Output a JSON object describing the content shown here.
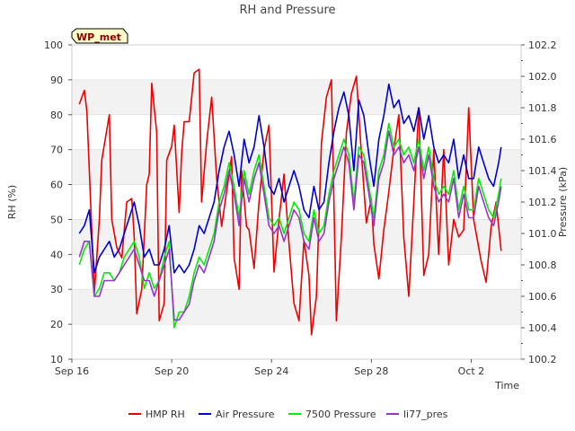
{
  "chart_data": {
    "type": "line",
    "title": "RH and Pressure",
    "xlabel": "Time",
    "ylabel": "RH (%)",
    "y2label": "Pressure (kPa)",
    "badge": "WP_met",
    "x_ticks": [
      {
        "label": "Sep 16",
        "day": 0
      },
      {
        "label": "Sep 20",
        "day": 4
      },
      {
        "label": "Sep 24",
        "day": 8
      },
      {
        "label": "Sep 28",
        "day": 12
      },
      {
        "label": "Oct 2",
        "day": 16
      }
    ],
    "xlim_days": [
      0,
      18
    ],
    "ylim": [
      10,
      100
    ],
    "y_ticks": [
      10,
      20,
      30,
      40,
      50,
      60,
      70,
      80,
      90,
      100
    ],
    "y2lim": [
      100.2,
      102.2
    ],
    "y2_ticks": [
      "100.2",
      "100.4",
      "100.6",
      "100.8",
      "101.0",
      "101.2",
      "101.4",
      "101.6",
      "101.8",
      "102.0",
      "102.2"
    ],
    "grid": "horizontal-bands",
    "legend_position": "bottom",
    "series": [
      {
        "name": "HMP RH",
        "color": "#ee0000",
        "axis": "left",
        "x": [
          0.3,
          0.5,
          0.6,
          0.9,
          1.1,
          1.2,
          1.5,
          1.6,
          1.8,
          2.0,
          2.2,
          2.4,
          2.5,
          2.6,
          2.8,
          3.0,
          3.1,
          3.2,
          3.4,
          3.5,
          3.7,
          3.8,
          4.0,
          4.1,
          4.3,
          4.4,
          4.5,
          4.7,
          4.9,
          5.1,
          5.2,
          5.4,
          5.6,
          5.8,
          6.0,
          6.2,
          6.4,
          6.5,
          6.7,
          6.8,
          7.0,
          7.1,
          7.3,
          7.5,
          7.7,
          7.9,
          8.1,
          8.3,
          8.5,
          8.7,
          8.9,
          9.1,
          9.3,
          9.5,
          9.6,
          9.8,
          10.0,
          10.2,
          10.4,
          10.6,
          10.8,
          11.0,
          11.2,
          11.4,
          11.6,
          11.8,
          12.0,
          12.1,
          12.3,
          12.5,
          12.7,
          12.9,
          13.1,
          13.3,
          13.5,
          13.7,
          13.9,
          14.1,
          14.3,
          14.5,
          14.7,
          14.9,
          15.1,
          15.3,
          15.5,
          15.7,
          15.9,
          16.1,
          16.3,
          16.4,
          16.6,
          16.8,
          17.0,
          17.2
        ],
        "values": [
          83,
          87,
          81,
          29,
          50,
          67,
          80,
          50,
          42,
          39,
          55,
          56,
          45,
          23,
          30,
          60,
          63,
          89,
          75,
          21,
          26,
          67,
          71,
          77,
          52,
          69,
          78,
          78,
          92,
          93,
          55,
          72,
          85,
          62,
          48,
          58,
          68,
          39,
          30,
          64,
          48,
          47,
          36,
          55,
          70,
          77,
          35,
          50,
          63,
          43,
          26,
          21,
          44,
          34,
          17,
          28,
          72,
          85,
          90,
          21,
          45,
          75,
          86,
          91,
          69,
          49,
          56,
          43,
          33,
          47,
          58,
          70,
          80,
          45,
          28,
          55,
          82,
          34,
          40,
          70,
          40,
          70,
          37,
          50,
          45,
          47,
          82,
          50,
          42,
          38,
          32,
          48,
          55,
          41
        ]
      },
      {
        "name": "Air Pressure",
        "color": "#0000cc",
        "axis": "right",
        "x": [
          0.3,
          0.5,
          0.7,
          0.9,
          1.1,
          1.3,
          1.5,
          1.7,
          1.9,
          2.1,
          2.3,
          2.5,
          2.7,
          2.9,
          3.1,
          3.3,
          3.5,
          3.7,
          3.9,
          4.1,
          4.3,
          4.5,
          4.7,
          4.9,
          5.1,
          5.3,
          5.5,
          5.7,
          5.9,
          6.1,
          6.3,
          6.5,
          6.7,
          6.9,
          7.1,
          7.3,
          7.5,
          7.7,
          7.9,
          8.1,
          8.3,
          8.5,
          8.7,
          8.9,
          9.1,
          9.3,
          9.5,
          9.7,
          9.9,
          10.1,
          10.3,
          10.5,
          10.7,
          10.9,
          11.1,
          11.3,
          11.5,
          11.7,
          11.9,
          12.1,
          12.3,
          12.5,
          12.7,
          12.9,
          13.1,
          13.3,
          13.5,
          13.7,
          13.9,
          14.1,
          14.3,
          14.5,
          14.7,
          14.9,
          15.1,
          15.3,
          15.5,
          15.7,
          15.9,
          16.1,
          16.3,
          16.5,
          16.7,
          16.9,
          17.1,
          17.2
        ],
        "values": [
          101.0,
          101.05,
          101.15,
          100.75,
          100.85,
          100.9,
          100.95,
          100.85,
          100.9,
          101.0,
          101.1,
          101.2,
          101.05,
          100.85,
          100.9,
          100.8,
          100.8,
          100.9,
          101.05,
          100.75,
          100.8,
          100.75,
          100.8,
          100.9,
          101.05,
          101.0,
          101.1,
          101.2,
          101.4,
          101.55,
          101.65,
          101.5,
          101.3,
          101.6,
          101.45,
          101.55,
          101.75,
          101.55,
          101.3,
          101.25,
          101.35,
          101.2,
          101.3,
          101.4,
          101.3,
          101.15,
          101.1,
          101.3,
          101.15,
          101.2,
          101.45,
          101.65,
          101.8,
          101.9,
          101.75,
          101.4,
          101.85,
          101.75,
          101.5,
          101.3,
          101.6,
          101.75,
          101.95,
          101.8,
          101.85,
          101.7,
          101.75,
          101.65,
          101.8,
          101.6,
          101.75,
          101.55,
          101.45,
          101.5,
          101.45,
          101.6,
          101.35,
          101.5,
          101.35,
          101.35,
          101.55,
          101.45,
          101.35,
          101.3,
          101.45,
          101.55
        ]
      },
      {
        "name": "7500 Pressure",
        "color": "#00ee00",
        "axis": "right",
        "x": [
          0.3,
          0.5,
          0.7,
          0.9,
          1.1,
          1.3,
          1.5,
          1.7,
          1.9,
          2.1,
          2.3,
          2.5,
          2.7,
          2.9,
          3.1,
          3.3,
          3.5,
          3.7,
          3.9,
          4.1,
          4.3,
          4.5,
          4.7,
          4.9,
          5.1,
          5.3,
          5.5,
          5.7,
          5.9,
          6.1,
          6.3,
          6.5,
          6.7,
          6.9,
          7.1,
          7.3,
          7.5,
          7.7,
          7.9,
          8.1,
          8.3,
          8.5,
          8.7,
          8.9,
          9.1,
          9.3,
          9.5,
          9.7,
          9.9,
          10.1,
          10.3,
          10.5,
          10.7,
          10.9,
          11.1,
          11.3,
          11.5,
          11.7,
          11.9,
          12.1,
          12.3,
          12.5,
          12.7,
          12.9,
          13.1,
          13.3,
          13.5,
          13.7,
          13.9,
          14.1,
          14.3,
          14.5,
          14.7,
          14.9,
          15.1,
          15.3,
          15.5,
          15.7,
          15.9,
          16.1,
          16.3,
          16.5,
          16.7,
          16.9,
          17.1,
          17.2
        ],
        "values": [
          100.8,
          100.9,
          100.95,
          100.6,
          100.65,
          100.75,
          100.75,
          100.7,
          100.75,
          100.85,
          100.9,
          100.95,
          100.85,
          100.65,
          100.75,
          100.65,
          100.7,
          100.85,
          100.95,
          100.4,
          100.5,
          100.5,
          100.6,
          100.75,
          100.85,
          100.8,
          100.9,
          101.0,
          101.2,
          101.3,
          101.45,
          101.3,
          101.1,
          101.4,
          101.25,
          101.4,
          101.5,
          101.3,
          101.1,
          101.05,
          101.1,
          101.0,
          101.1,
          101.2,
          101.15,
          101.0,
          100.95,
          101.15,
          101.0,
          101.05,
          101.25,
          101.4,
          101.5,
          101.6,
          101.5,
          101.2,
          101.55,
          101.5,
          101.3,
          101.1,
          101.4,
          101.5,
          101.7,
          101.55,
          101.6,
          101.5,
          101.55,
          101.45,
          101.6,
          101.4,
          101.55,
          101.35,
          101.25,
          101.3,
          101.25,
          101.4,
          101.15,
          101.3,
          101.15,
          101.15,
          101.35,
          101.25,
          101.15,
          101.1,
          101.25,
          101.35
        ]
      },
      {
        "name": "li77_pres",
        "color": "#9933cc",
        "axis": "right",
        "x": [
          0.3,
          0.5,
          0.7,
          0.9,
          1.1,
          1.3,
          1.5,
          1.7,
          1.9,
          2.1,
          2.3,
          2.5,
          2.7,
          2.9,
          3.1,
          3.3,
          3.5,
          3.7,
          3.9,
          4.1,
          4.3,
          4.5,
          4.7,
          4.9,
          5.1,
          5.3,
          5.5,
          5.7,
          5.9,
          6.1,
          6.3,
          6.5,
          6.7,
          6.9,
          7.1,
          7.3,
          7.5,
          7.7,
          7.9,
          8.1,
          8.3,
          8.5,
          8.7,
          8.9,
          9.1,
          9.3,
          9.5,
          9.7,
          9.9,
          10.1,
          10.3,
          10.5,
          10.7,
          10.9,
          11.1,
          11.3,
          11.5,
          11.7,
          11.9,
          12.1,
          12.3,
          12.5,
          12.7,
          12.9,
          13.1,
          13.3,
          13.5,
          13.7,
          13.9,
          14.1,
          14.3,
          14.5,
          14.7,
          14.9,
          15.1,
          15.3,
          15.5,
          15.7,
          15.9,
          16.1,
          16.3,
          16.5,
          16.7,
          16.9,
          17.1,
          17.2
        ],
        "values": [
          100.85,
          100.95,
          100.95,
          100.6,
          100.6,
          100.7,
          100.7,
          100.7,
          100.75,
          100.8,
          100.85,
          100.9,
          100.8,
          100.7,
          100.7,
          100.6,
          100.7,
          100.8,
          100.9,
          100.45,
          100.45,
          100.5,
          100.55,
          100.7,
          100.8,
          100.75,
          100.85,
          100.95,
          101.15,
          101.25,
          101.4,
          101.25,
          101.05,
          101.35,
          101.2,
          101.35,
          101.45,
          101.25,
          101.05,
          101.0,
          101.05,
          100.95,
          101.05,
          101.15,
          101.1,
          100.95,
          100.9,
          101.1,
          100.95,
          101.0,
          101.2,
          101.35,
          101.45,
          101.55,
          101.45,
          101.15,
          101.5,
          101.45,
          101.25,
          101.05,
          101.35,
          101.45,
          101.65,
          101.5,
          101.55,
          101.45,
          101.5,
          101.4,
          101.55,
          101.35,
          101.5,
          101.3,
          101.2,
          101.25,
          101.2,
          101.35,
          101.1,
          101.25,
          101.1,
          101.1,
          101.3,
          101.2,
          101.1,
          101.05,
          101.2,
          101.3
        ]
      }
    ]
  }
}
